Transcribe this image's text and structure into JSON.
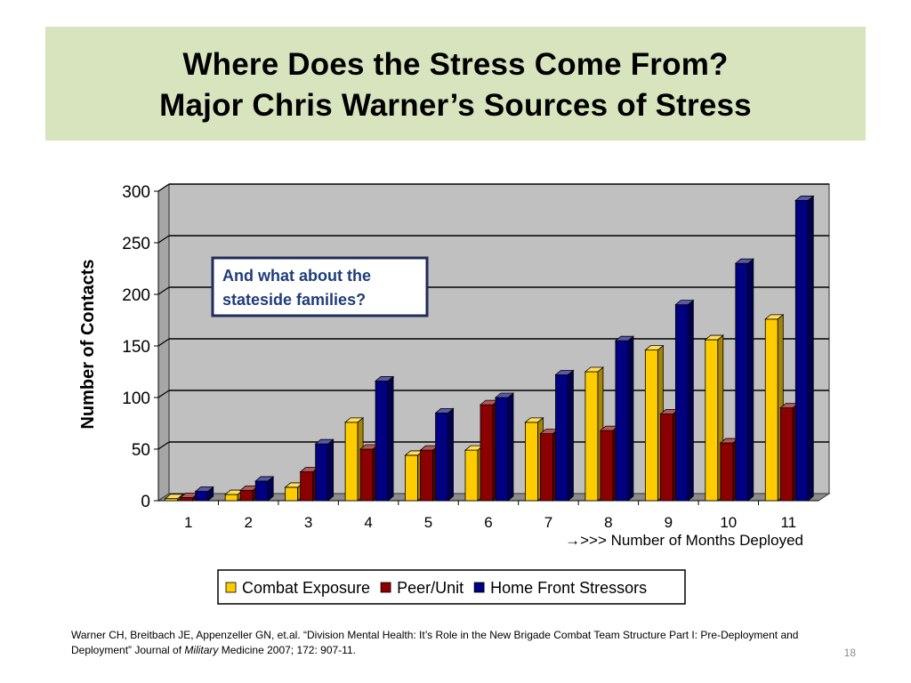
{
  "slide": {
    "title_line1": "Where Does the Stress Come From?",
    "title_line2": "Major Chris Warner’s Sources of Stress",
    "title_bg": "#d7e4bd",
    "footnote_part1": "Warner CH, Breitbach JE, Appenzeller GN, et.al. “Division Mental Health: It’s Role in the New Brigade Combat Team Structure Part I: Pre-Deployment and Deployment”  Journal of ",
    "footnote_italic": "Military",
    "footnote_part2": " Medicine   2007; 172: 907-11.",
    "slide_number": "18"
  },
  "chart_data": {
    "type": "bar",
    "style": "3d-clustered-column",
    "categories": [
      "1",
      "2",
      "3",
      "4",
      "5",
      "6",
      "7",
      "8",
      "9",
      "10",
      "11"
    ],
    "series": [
      {
        "name": "Combat Exposure",
        "color": "#ffcc00",
        "values": [
          2,
          6,
          13,
          76,
          44,
          49,
          76,
          125,
          146,
          156,
          176
        ]
      },
      {
        "name": "Peer/Unit",
        "color": "#8b0000",
        "values": [
          3,
          10,
          28,
          50,
          49,
          93,
          65,
          68,
          84,
          56,
          90
        ]
      },
      {
        "name": "Home Front Stressors",
        "color": "#000080",
        "values": [
          9,
          19,
          55,
          116,
          85,
          100,
          122,
          155,
          190,
          230,
          291
        ]
      }
    ],
    "ylabel": "Number of Contacts",
    "xlabel": "→>>> Number of Months Deployed",
    "ylim": [
      0,
      300
    ],
    "yticks": [
      "0",
      "50",
      "100",
      "150",
      "200",
      "250",
      "300"
    ],
    "grid": true,
    "wall_color": "#c0c0c0",
    "legend_position": "bottom",
    "annotation": "And what about the stateside families?"
  }
}
